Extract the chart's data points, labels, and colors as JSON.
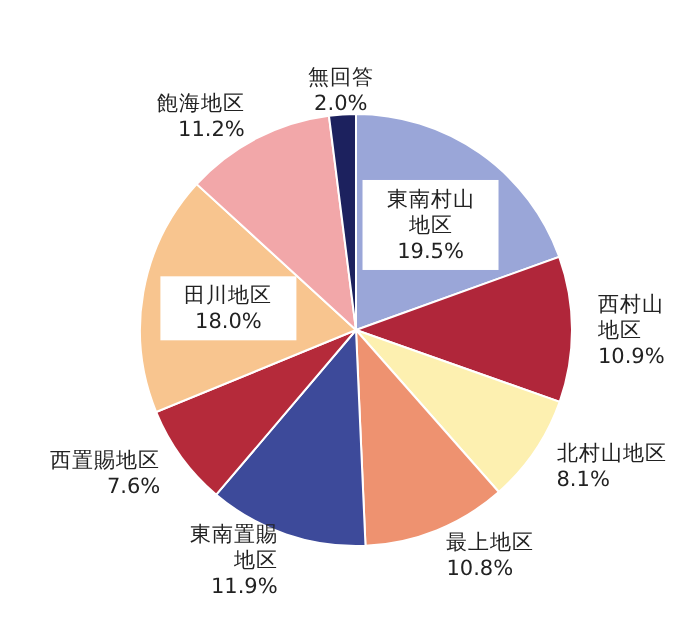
{
  "chart_data": {
    "type": "pie",
    "categories": [
      "東南村山地区",
      "西村山地区",
      "北村山地区",
      "最上地区",
      "東南置賜地区",
      "西置賜地区",
      "田川地区",
      "飽海地区",
      "無回答"
    ],
    "values": [
      19.5,
      10.9,
      8.1,
      10.8,
      11.9,
      7.6,
      18.0,
      11.2,
      2.0
    ],
    "colors": [
      "#9aa6d8",
      "#b0263a",
      "#fdf0b0",
      "#ee9270",
      "#3d4a9a",
      "#b52a3a",
      "#f8c58f",
      "#f2a7a9",
      "#1c215e"
    ],
    "value_labels": [
      "19.5%",
      "10.9%",
      "8.1%",
      "10.8%",
      "11.9%",
      "7.6%",
      "18.0%",
      "11.2%",
      "2.0%"
    ]
  }
}
